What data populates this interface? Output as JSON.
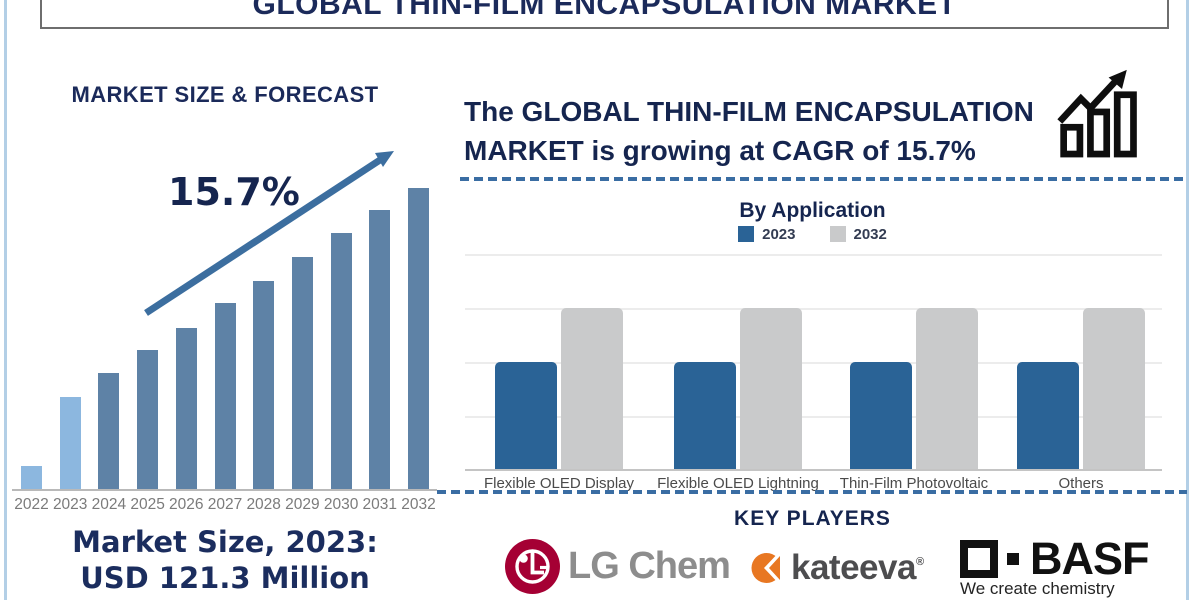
{
  "header": {
    "title": "GLOBAL THIN-FILM ENCAPSULATION MARKET"
  },
  "left_panel": {
    "caption_line1": "Market Size, 2023:",
    "caption_line2": "USD 121.3 Million"
  },
  "right_panel": {
    "headline_line1": "The GLOBAL THIN-FILM ENCAPSULATION",
    "headline_line2": "MARKET is growing at CAGR of 15.7%",
    "key_players": {
      "heading": "KEY PLAYERS",
      "players": [
        {
          "name": "LG Chem"
        },
        {
          "name": "kateeva",
          "reg_mark": "®"
        },
        {
          "name": "BASF",
          "tagline": "We create chemistry"
        }
      ]
    }
  },
  "colors": {
    "navy_text": "#15254f",
    "forecast_bar": "#5e82a6",
    "forecast_bar_highlight": "#8cb7df",
    "trend_arrow": "#3c6e9f",
    "application_2023_blue": "#2a6396",
    "application_2032_gray": "#c9cacb",
    "dashed_divider_blue": "#3a6da3",
    "lg_red": "#a50034",
    "kateeva_orange": "#e87722",
    "basf_black": "#111111"
  },
  "chart_data": [
    {
      "id": "market_size_forecast",
      "type": "bar",
      "title": "MARKET SIZE & FORECAST",
      "annotation": "15.7%",
      "categories": [
        "2022",
        "2023",
        "2024",
        "2025",
        "2026",
        "2027",
        "2028",
        "2029",
        "2030",
        "2031",
        "2032"
      ],
      "values": [
        23,
        92,
        116,
        139,
        161,
        186,
        208,
        232,
        256,
        279,
        301
      ],
      "units": "relative bar height, value axis not labeled",
      "known_point": "2023 = USD 121.3 Million",
      "highlight_years": [
        "2022",
        "2023"
      ],
      "bar_color_default": "#5e82a6",
      "bar_color_highlight": "#8cb7df",
      "grid": false,
      "xlabel": "",
      "ylabel": ""
    },
    {
      "id": "by_application",
      "type": "bar",
      "title": "By Application",
      "categories": [
        "Flexible OLED Display",
        "Flexible OLED Lightning",
        "Thin-Film Photovoltaic",
        "Others"
      ],
      "series": [
        {
          "name": "2023",
          "values": [
            2,
            2,
            2,
            2
          ],
          "color": "#2a6396"
        },
        {
          "name": "2032",
          "values": [
            3,
            3,
            3,
            3
          ],
          "color": "#c9cacb"
        }
      ],
      "units": "relative units, value axis not labeled; gridline spacing = 1 unit",
      "ylim": [
        0,
        4
      ],
      "grid": true,
      "legend_position": "top"
    }
  ]
}
